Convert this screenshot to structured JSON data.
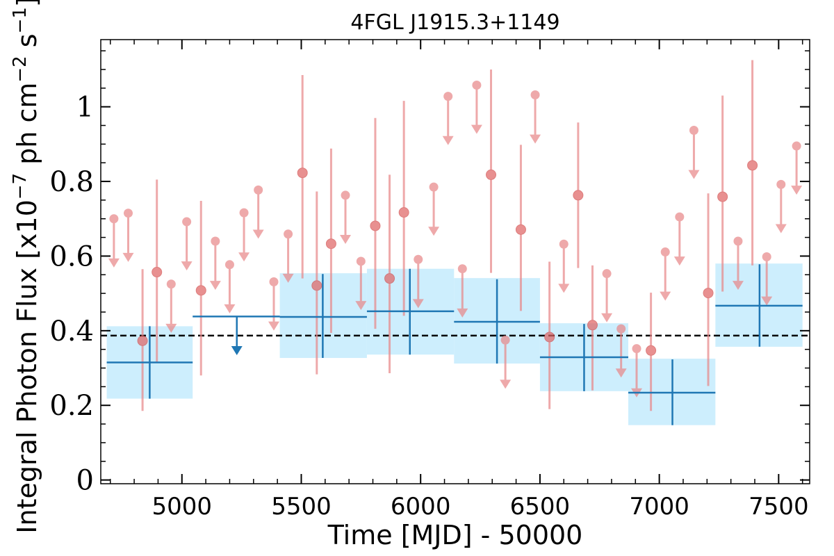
{
  "chart_data": {
    "type": "scatter",
    "title": "4FGL J1915.3+1149",
    "xlabel": "Time [MJD] - 50000",
    "ylabel": "Integral Photon Flux [x10",
    "ylabel_exp": "−7",
    "ylabel_mid": " ph cm",
    "ylabel_exp2": "−2",
    "ylabel_mid2": " s",
    "ylabel_exp3": "−1",
    "ylabel_end": "]",
    "xlim": [
      4660,
      7630
    ],
    "ylim": [
      -0.01,
      1.18
    ],
    "x_ticks": [
      "5000",
      "5500",
      "6000",
      "6500",
      "7000",
      "7500"
    ],
    "x_tick_values": [
      5000,
      5500,
      6000,
      6500,
      7000,
      7500
    ],
    "y_ticks": [
      "0",
      "0.2",
      "0.4",
      "0.6",
      "0.8",
      "1"
    ],
    "y_tick_values": [
      0,
      0.2,
      0.4,
      0.6,
      0.8,
      1.0
    ],
    "average_flux": 0.387,
    "colors": {
      "long_bin": "#1f77b4",
      "long_bin_band": "#cdeefd",
      "short_bin": "#e8888a",
      "average_line": "#000000"
    },
    "long_bins": [
      {
        "x": 4865,
        "x_lo": 4685,
        "x_hi": 5045,
        "y": 0.315,
        "y_lo": 0.218,
        "y_hi": 0.412,
        "band_lo": 0.218,
        "band_hi": 0.412
      },
      {
        "x": 5230,
        "x_lo": 5045,
        "x_hi": 5410,
        "y": 0.438,
        "upper_limit": true,
        "ul_to": 0.34
      },
      {
        "x": 5590,
        "x_lo": 5410,
        "x_hi": 5775,
        "y": 0.437,
        "y_lo": 0.327,
        "y_hi": 0.552,
        "band_lo": 0.327,
        "band_hi": 0.554
      },
      {
        "x": 5955,
        "x_lo": 5775,
        "x_hi": 6140,
        "y": 0.452,
        "y_lo": 0.336,
        "y_hi": 0.566,
        "band_lo": 0.336,
        "band_hi": 0.566
      },
      {
        "x": 6320,
        "x_lo": 6140,
        "x_hi": 6500,
        "y": 0.424,
        "y_lo": 0.312,
        "y_hi": 0.538,
        "band_lo": 0.312,
        "band_hi": 0.541
      },
      {
        "x": 6685,
        "x_lo": 6500,
        "x_hi": 6870,
        "y": 0.329,
        "y_lo": 0.238,
        "y_hi": 0.418,
        "band_lo": 0.238,
        "band_hi": 0.42
      },
      {
        "x": 7055,
        "x_lo": 6870,
        "x_hi": 7235,
        "y": 0.234,
        "y_lo": 0.147,
        "y_hi": 0.323,
        "band_lo": 0.147,
        "band_hi": 0.325
      },
      {
        "x": 7420,
        "x_lo": 7235,
        "x_hi": 7600,
        "y": 0.467,
        "y_lo": 0.357,
        "y_hi": 0.578,
        "band_lo": 0.357,
        "band_hi": 0.58
      }
    ],
    "short_bins": [
      {
        "x": 4715,
        "y": 0.7,
        "ul": true,
        "ul_to": 0.575
      },
      {
        "x": 4775,
        "y": 0.715,
        "ul": true,
        "ul_to": 0.59
      },
      {
        "x": 4835,
        "y": 0.373,
        "y_lo": 0.185,
        "y_hi": 0.565
      },
      {
        "x": 4895,
        "y": 0.557,
        "y_lo": 0.315,
        "y_hi": 0.805
      },
      {
        "x": 4955,
        "y": 0.525,
        "ul": true,
        "ul_to": 0.4
      },
      {
        "x": 5020,
        "y": 0.692,
        "ul": true,
        "ul_to": 0.567
      },
      {
        "x": 5080,
        "y": 0.508,
        "y_lo": 0.28,
        "y_hi": 0.748
      },
      {
        "x": 5140,
        "y": 0.64,
        "ul": true,
        "ul_to": 0.515
      },
      {
        "x": 5200,
        "y": 0.577,
        "ul": true,
        "ul_to": 0.452
      },
      {
        "x": 5260,
        "y": 0.716,
        "ul": true,
        "ul_to": 0.591
      },
      {
        "x": 5320,
        "y": 0.777,
        "ul": true,
        "ul_to": 0.652
      },
      {
        "x": 5385,
        "y": 0.531,
        "ul": true,
        "ul_to": 0.406
      },
      {
        "x": 5445,
        "y": 0.659,
        "ul": true,
        "ul_to": 0.534
      },
      {
        "x": 5505,
        "y": 0.823,
        "y_lo": 0.54,
        "y_hi": 1.085
      },
      {
        "x": 5565,
        "y": 0.521,
        "y_lo": 0.283,
        "y_hi": 0.773
      },
      {
        "x": 5625,
        "y": 0.633,
        "y_lo": 0.394,
        "y_hi": 0.888
      },
      {
        "x": 5685,
        "y": 0.763,
        "ul": true,
        "ul_to": 0.638
      },
      {
        "x": 5750,
        "y": 0.586,
        "ul": true,
        "ul_to": 0.461
      },
      {
        "x": 5810,
        "y": 0.681,
        "y_lo": 0.405,
        "y_hi": 0.97
      },
      {
        "x": 5870,
        "y": 0.54,
        "y_lo": 0.286,
        "y_hi": 0.818
      },
      {
        "x": 5930,
        "y": 0.717,
        "y_lo": 0.44,
        "y_hi": 1.016
      },
      {
        "x": 5990,
        "y": 0.591,
        "ul": true,
        "ul_to": 0.466
      },
      {
        "x": 6055,
        "y": 0.785,
        "ul": true,
        "ul_to": 0.66
      },
      {
        "x": 6115,
        "y": 1.028,
        "ul": true,
        "ul_to": 0.903
      },
      {
        "x": 6175,
        "y": 0.566,
        "ul": true,
        "ul_to": 0.441
      },
      {
        "x": 6235,
        "y": 1.058,
        "ul": true,
        "ul_to": 0.933
      },
      {
        "x": 6295,
        "y": 0.818,
        "y_lo": 0.555,
        "y_hi": 1.1
      },
      {
        "x": 6355,
        "y": 0.375,
        "ul": true,
        "ul_to": 0.25
      },
      {
        "x": 6420,
        "y": 0.671,
        "y_lo": 0.453,
        "y_hi": 0.898
      },
      {
        "x": 6480,
        "y": 1.032,
        "ul": true,
        "ul_to": 0.907
      },
      {
        "x": 6540,
        "y": 0.383,
        "y_lo": 0.19,
        "y_hi": 0.585
      },
      {
        "x": 6600,
        "y": 0.632,
        "ul": true,
        "ul_to": 0.507
      },
      {
        "x": 6660,
        "y": 0.763,
        "y_lo": 0.568,
        "y_hi": 0.958
      },
      {
        "x": 6720,
        "y": 0.415,
        "y_lo": 0.24,
        "y_hi": 0.575
      },
      {
        "x": 6780,
        "y": 0.553,
        "ul": true,
        "ul_to": 0.428
      },
      {
        "x": 6840,
        "y": 0.405,
        "ul": true,
        "ul_to": 0.28
      },
      {
        "x": 6905,
        "y": 0.352,
        "ul": true,
        "ul_to": 0.227
      },
      {
        "x": 6965,
        "y": 0.347,
        "y_lo": 0.185,
        "y_hi": 0.502
      },
      {
        "x": 7025,
        "y": 0.611,
        "ul": true,
        "ul_to": 0.486
      },
      {
        "x": 7085,
        "y": 0.705,
        "ul": true,
        "ul_to": 0.58
      },
      {
        "x": 7145,
        "y": 0.937,
        "ul": true,
        "ul_to": 0.812
      },
      {
        "x": 7205,
        "y": 0.501,
        "y_lo": 0.252,
        "y_hi": 0.768
      },
      {
        "x": 7265,
        "y": 0.759,
        "y_lo": 0.505,
        "y_hi": 1.03
      },
      {
        "x": 7330,
        "y": 0.64,
        "ul": true,
        "ul_to": 0.515
      },
      {
        "x": 7390,
        "y": 0.843,
        "y_lo": 0.575,
        "y_hi": 1.125
      },
      {
        "x": 7450,
        "y": 0.598,
        "ul": true,
        "ul_to": 0.473
      },
      {
        "x": 7510,
        "y": 0.792,
        "ul": true,
        "ul_to": 0.667
      },
      {
        "x": 7575,
        "y": 0.895,
        "ul": true,
        "ul_to": 0.77
      }
    ]
  }
}
